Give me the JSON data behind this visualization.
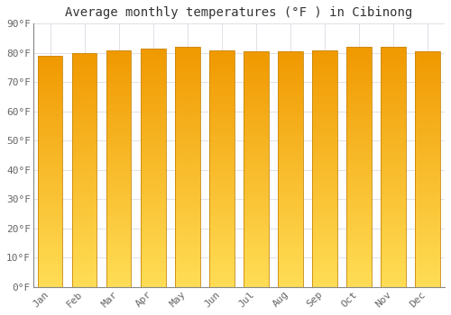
{
  "title": "Average monthly temperatures (°F ) in Cibinong",
  "months": [
    "Jan",
    "Feb",
    "Mar",
    "Apr",
    "May",
    "Jun",
    "Jul",
    "Aug",
    "Sep",
    "Oct",
    "Nov",
    "Dec"
  ],
  "values": [
    79,
    80,
    81,
    81.5,
    82,
    81,
    80.5,
    80.5,
    81,
    82,
    82,
    80.5
  ],
  "ylim": [
    0,
    90
  ],
  "yticks": [
    0,
    10,
    20,
    30,
    40,
    50,
    60,
    70,
    80,
    90
  ],
  "ytick_labels": [
    "0°F",
    "10°F",
    "20°F",
    "30°F",
    "40°F",
    "50°F",
    "60°F",
    "70°F",
    "80°F",
    "90°F"
  ],
  "bar_color_top": "#F5A800",
  "bar_color_bottom": "#FFD966",
  "bar_edge_color": "#C8880A",
  "background_color": "#FFFFFF",
  "grid_color": "#E0E0E8",
  "title_fontsize": 10,
  "tick_fontsize": 8,
  "font_family": "monospace",
  "bar_width": 0.72
}
